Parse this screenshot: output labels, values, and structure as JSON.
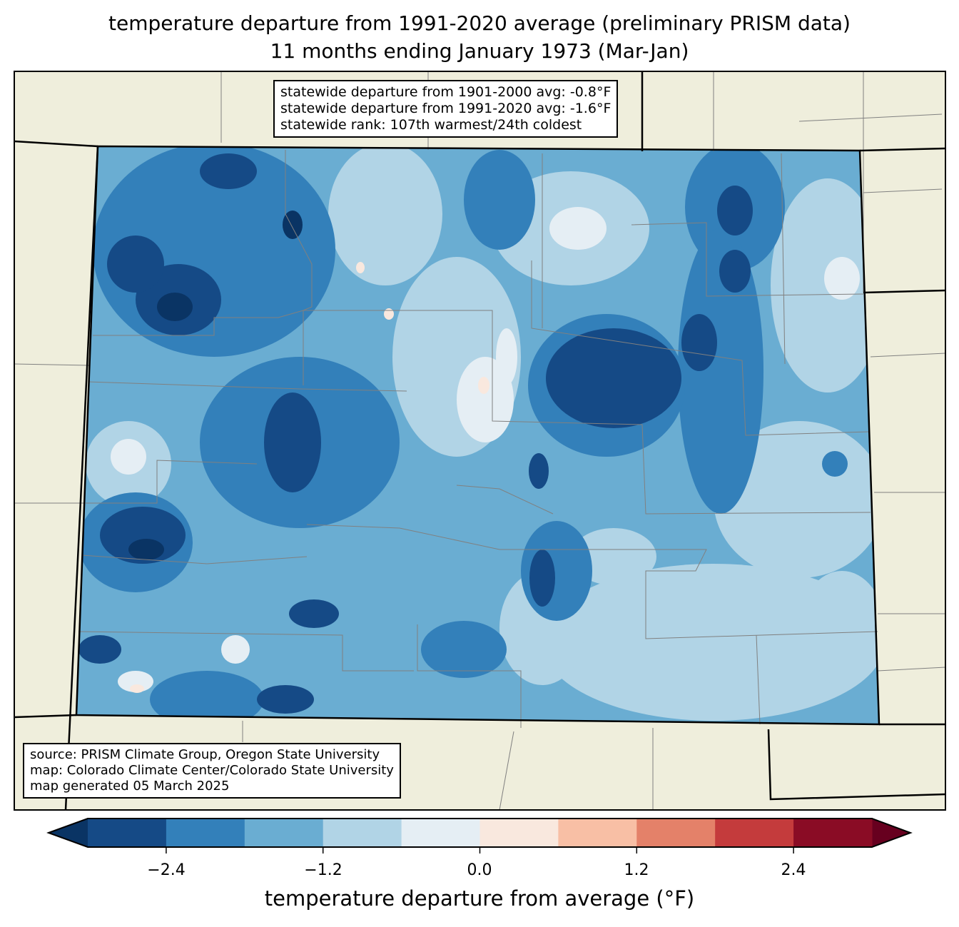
{
  "title": {
    "line1": "temperature departure from 1991-2020 average (preliminary PRISM data)",
    "line2": "11 months ending January 1973 (Mar-Jan)"
  },
  "stats_box": {
    "line1": "statewide departure from 1901-2000 avg: -0.8°F",
    "line2": "statewide departure from 1991-2020 avg: -1.6°F",
    "line3": "statewide rank: 107th warmest/24th coldest"
  },
  "source_box": {
    "line1": "source: PRISM Climate Group, Oregon State University",
    "line2": "map: Colorado Climate Center/Colorado State University",
    "line3": "map generated 05 March 2025"
  },
  "colorbar": {
    "label": "temperature departure from average (°F)",
    "levels": [
      -3.0,
      -2.4,
      -1.8,
      -1.2,
      -0.6,
      0.0,
      0.6,
      1.2,
      1.8,
      2.4,
      3.0
    ],
    "colors": [
      "#154a86",
      "#3380ba",
      "#6aadd2",
      "#b1d4e6",
      "#e5eef4",
      "#f9e8de",
      "#f8bfa5",
      "#e48169",
      "#c43b3c",
      "#8a0c25"
    ],
    "extend_low_color": "#0a3464",
    "extend_high_color": "#67001f",
    "ticks": [
      "−2.4",
      "−1.2",
      "0.0",
      "1.2",
      "2.4"
    ]
  },
  "colors": {
    "land": "#efeedc",
    "county_line": "#808080",
    "state_line": "#000000"
  }
}
